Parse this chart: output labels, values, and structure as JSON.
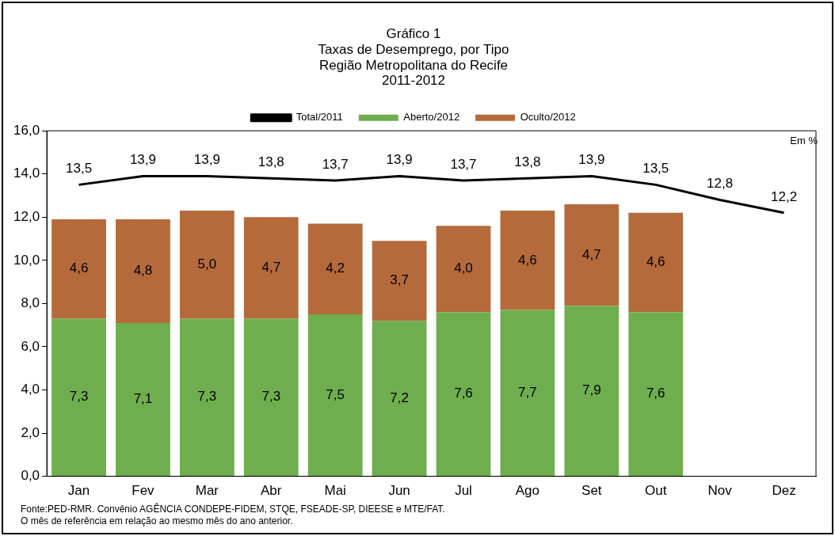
{
  "chart_data": {
    "type": "bar",
    "stacked": true,
    "title": "Gráfico 1\nTaxas de Desemprego, por Tipo\nRegião Metropolitana do Recife\n2011-2012",
    "categories": [
      "Jan",
      "Fev",
      "Mar",
      "Abr",
      "Mai",
      "Jun",
      "Jul",
      "Ago",
      "Set",
      "Out",
      "Nov",
      "Dez"
    ],
    "series": [
      {
        "name": "Aberto/2012",
        "color": "#6fae4f",
        "values": [
          7.3,
          7.1,
          7.3,
          7.3,
          7.5,
          7.2,
          7.6,
          7.7,
          7.9,
          7.6,
          null,
          null
        ],
        "value_labels": [
          "7,3",
          "7,1",
          "7,3",
          "7,3",
          "7,5",
          "7,2",
          "7,6",
          "7,7",
          "7,9",
          "7,6",
          null,
          null
        ]
      },
      {
        "name": "Oculto/2012",
        "color": "#b56a3c",
        "values": [
          4.6,
          4.8,
          5.0,
          4.7,
          4.2,
          3.7,
          4.0,
          4.6,
          4.7,
          4.6,
          null,
          null
        ],
        "value_labels": [
          "4,6",
          "4,8",
          "5,0",
          "4,7",
          "4,2",
          "3,7",
          "4,0",
          "4,6",
          "4,7",
          "4,6",
          null,
          null
        ]
      },
      {
        "name": "Total/2011",
        "type": "line",
        "color": "#000000",
        "values": [
          13.5,
          13.9,
          13.9,
          13.8,
          13.7,
          13.9,
          13.7,
          13.8,
          13.9,
          13.5,
          12.8,
          12.2
        ],
        "value_labels": [
          "13,5",
          "13,9",
          "13,9",
          "13,8",
          "13,7",
          "13,9",
          "13,7",
          "13,8",
          "13,9",
          "13,5",
          "12,8",
          "12,2"
        ]
      }
    ],
    "ylim": [
      0,
      16
    ],
    "yticks": [
      {
        "value": 0,
        "label": "0,0"
      },
      {
        "value": 2,
        "label": "2,0"
      },
      {
        "value": 4,
        "label": "4,0"
      },
      {
        "value": 6,
        "label": "6,0"
      },
      {
        "value": 8,
        "label": "8,0"
      },
      {
        "value": 10,
        "label": "10,0"
      },
      {
        "value": 12,
        "label": "12,0"
      },
      {
        "value": 14,
        "label": "14,0"
      },
      {
        "value": 16,
        "label": "16,0"
      }
    ],
    "grid": false,
    "legend": "top",
    "marker": "none",
    "annotations": [
      "Em %",
      "Fonte:PED-RMR. Convênio AGÊNCIA CONDEPE-FIDEM, STQE, FSEADE-SP, DIEESE e MTE/FAT.",
      "O mês de referência em relação ao mesmo mês do ano anterior."
    ]
  }
}
